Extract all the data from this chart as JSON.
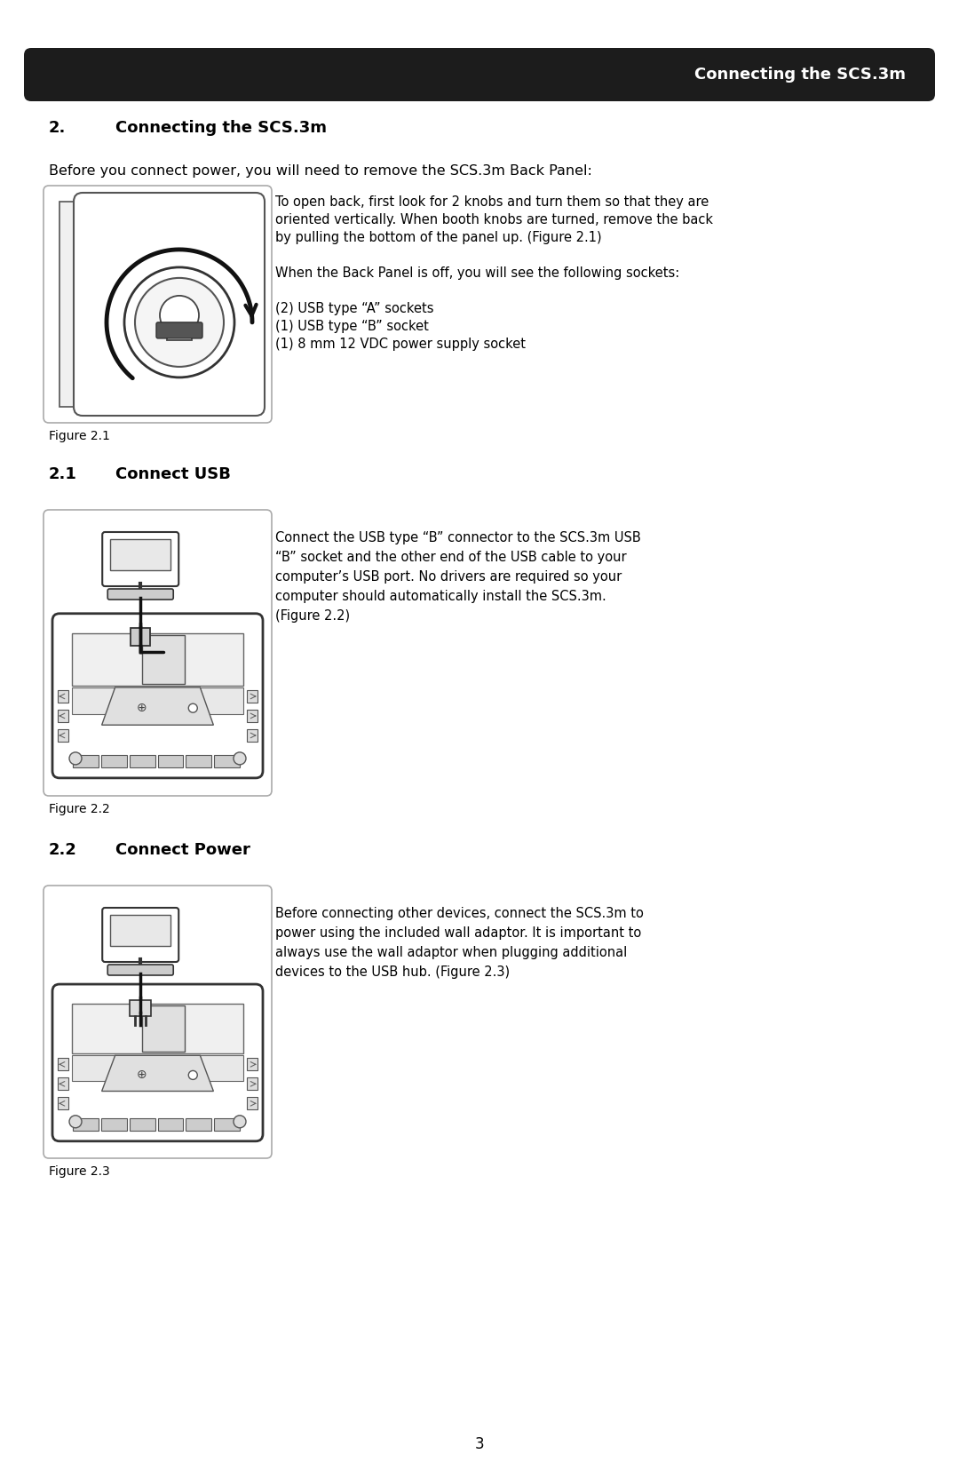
{
  "page_bg": "#ffffff",
  "header_bg": "#1c1c1c",
  "header_text": "Connecting the SCS.3m",
  "header_text_color": "#ffffff",
  "section_number": "2.",
  "section_title": "Connecting the SCS.3m",
  "intro_text": "Before you connect power, you will need to remove the SCS.3m Back Panel:",
  "fig1_caption": "Figure 2.1",
  "fig1_desc": [
    "To open back, first look for 2 knobs and turn them so that they are",
    "oriented vertically. When booth knobs are turned, remove the back",
    "by pulling the bottom of the panel up. (Figure 2.1)",
    "",
    "When the Back Panel is off, you will see the following sockets:",
    "",
    "(2) USB type “A” sockets",
    "(1) USB type “B” socket",
    "(1) 8 mm 12 VDC power supply socket"
  ],
  "sub1_number": "2.1",
  "sub1_title": "Connect USB",
  "fig2_caption": "Figure 2.2",
  "fig2_desc": [
    "Connect the USB type “B” connector to the SCS.3m USB",
    "“B” socket and the other end of the USB cable to your",
    "computer’s USB port. No drivers are required so your",
    "computer should automatically install the SCS.3m.",
    "(Figure 2.2)"
  ],
  "sub2_number": "2.2",
  "sub2_title": "Connect Power",
  "fig3_caption": "Figure 2.3",
  "fig3_desc": [
    "Before connecting other devices, connect the SCS.3m to",
    "power using the included wall adaptor. It is important to",
    "always use the wall adaptor when plugging additional",
    "devices to the USB hub. (Figure 2.3)"
  ],
  "page_number": "3"
}
